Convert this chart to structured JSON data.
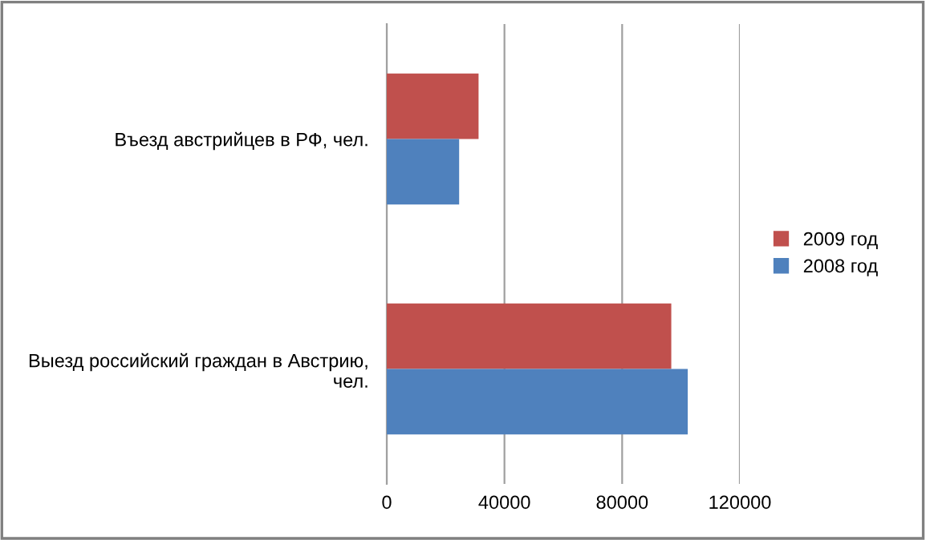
{
  "chart_data": {
    "type": "bar",
    "orientation": "horizontal",
    "categories": [
      "Въезд австрийцев в РФ, чел.",
      "Выезд российский граждан в Австрию,\nчел."
    ],
    "series": [
      {
        "name": "2009 год",
        "color": "#c0504d",
        "values": [
          31200,
          96700
        ]
      },
      {
        "name": "2008 год",
        "color": "#4f81bd",
        "values": [
          24600,
          102300
        ]
      }
    ],
    "xlim": [
      0,
      120000
    ],
    "xticks": [
      0,
      40000,
      80000,
      120000
    ],
    "grid": "x",
    "legend": "right"
  }
}
